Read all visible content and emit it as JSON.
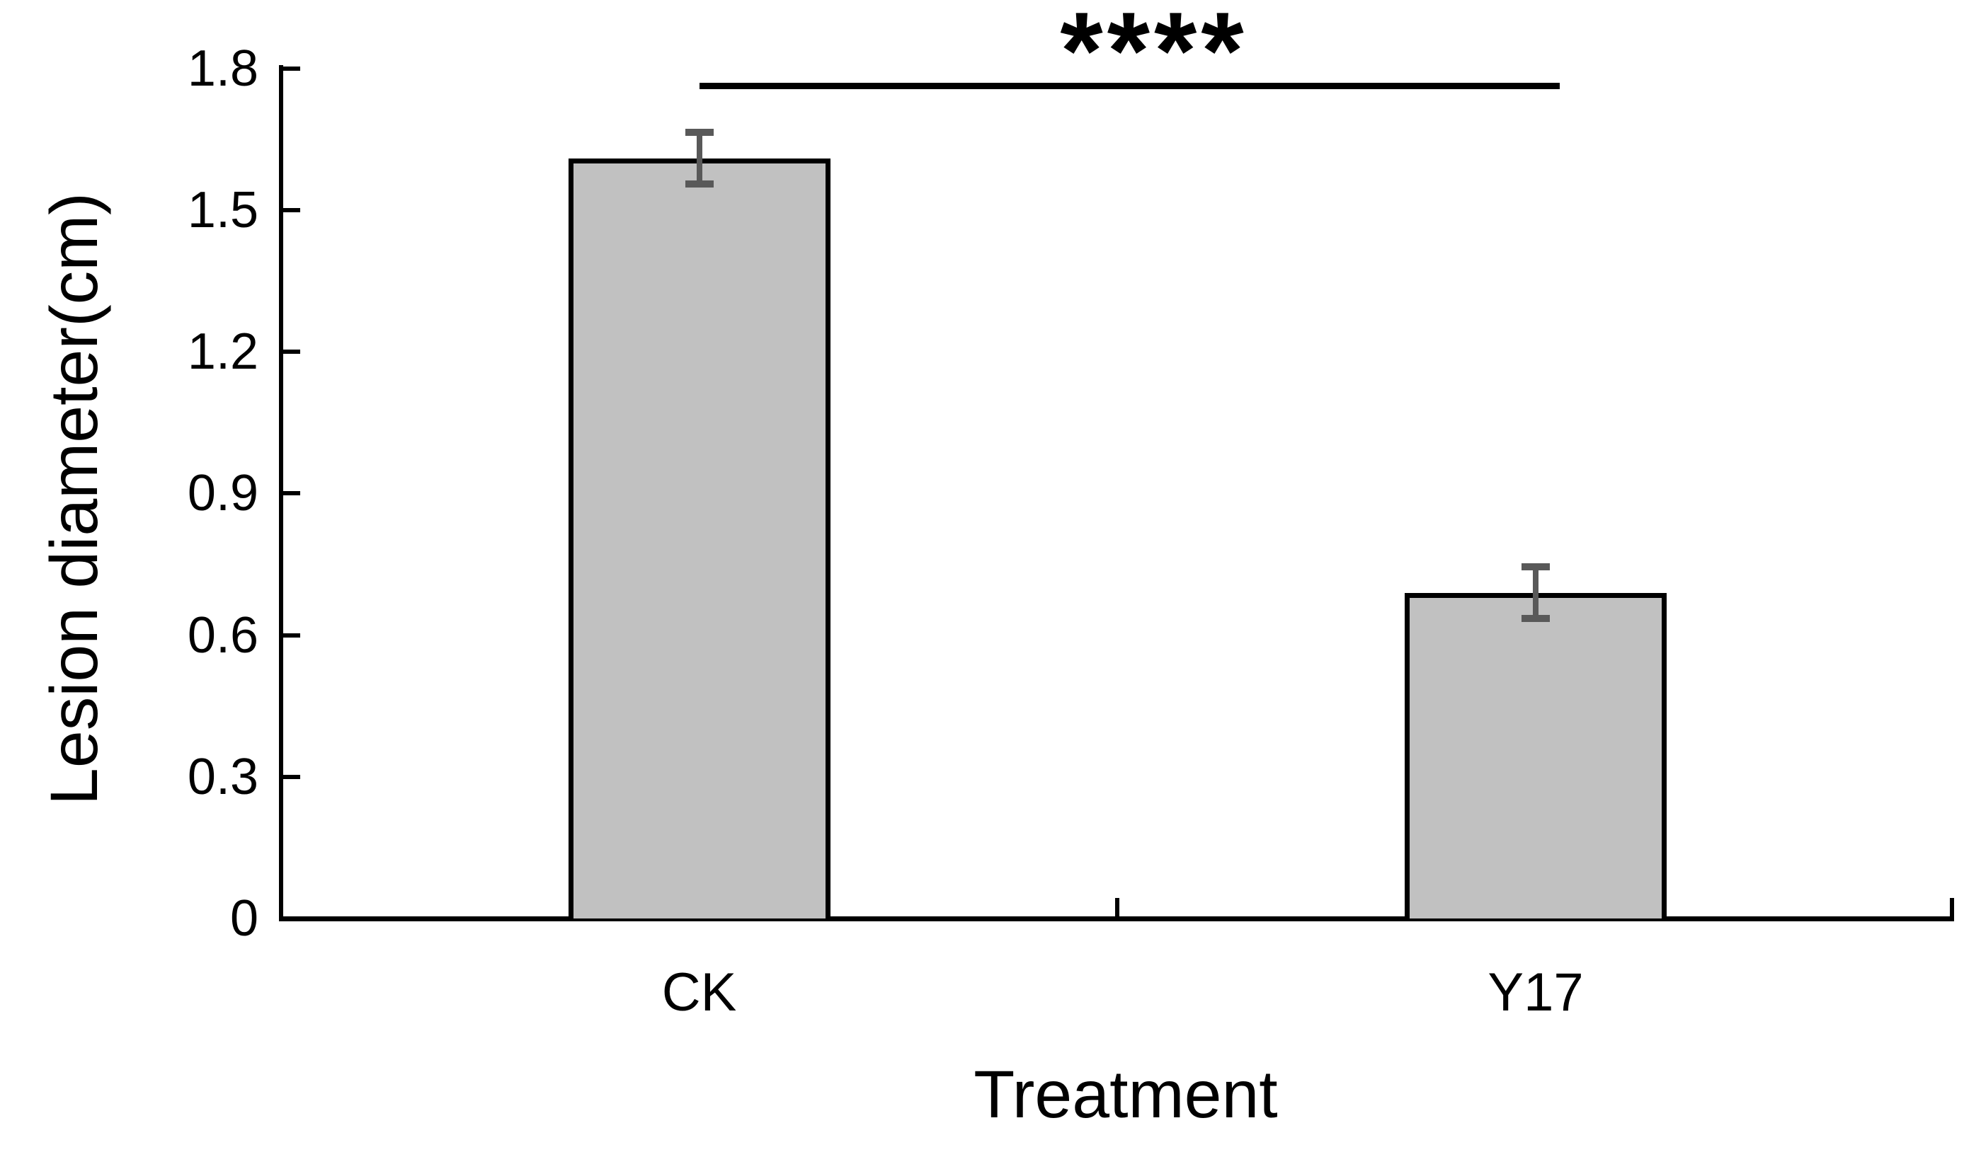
{
  "chart_data": {
    "type": "bar",
    "title": "",
    "xlabel": "Treatment",
    "ylabel": "Lesion diameter(cm)",
    "categories": [
      "CK",
      "Y17"
    ],
    "values": [
      1.61,
      0.69
    ],
    "error_bars": [
      0.055,
      0.055
    ],
    "yticks": [
      0,
      0.3,
      0.6,
      0.9,
      1.2,
      1.5,
      1.8
    ],
    "ytick_labels": [
      "0",
      "0.3",
      "0.6",
      "0.9",
      "1.2",
      "1.5",
      "1.8"
    ],
    "ylim": [
      0,
      1.8
    ],
    "grid": false,
    "legend": false,
    "bar_fill_color": "#c1c1c1",
    "bar_border_color": "#000000",
    "error_bar_color": "#595959",
    "significance": {
      "label": "****",
      "between": [
        "CK",
        "Y17"
      ]
    }
  }
}
